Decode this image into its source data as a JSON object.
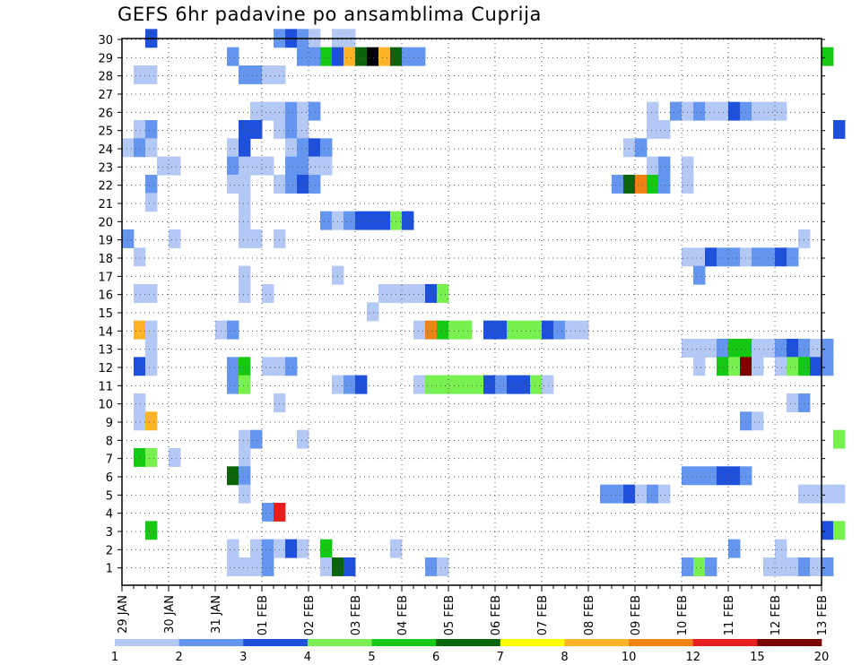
{
  "chart_data": {
    "type": "heatmap",
    "title": "GEFS 6hr padavine po ansamblima Cuprija",
    "xlabel": "",
    "ylabel": "",
    "x_tick_labels": [
      "29 JAN",
      "30 JAN",
      "31 JAN",
      "01 FEB",
      "02 FEB",
      "03 FEB",
      "04 FEB",
      "05 FEB",
      "06 FEB",
      "07 FEB",
      "08 FEB",
      "09 FEB",
      "10 FEB",
      "11 FEB",
      "12 FEB",
      "13 FEB"
    ],
    "y_tick_labels": [
      "1",
      "2",
      "3",
      "4",
      "5",
      "6",
      "7",
      "8",
      "9",
      "10",
      "11",
      "12",
      "13",
      "14",
      "15",
      "16",
      "17",
      "18",
      "19",
      "20",
      "21",
      "22",
      "23",
      "24",
      "25",
      "26",
      "27",
      "28",
      "29",
      "30"
    ],
    "time_step_hours": 6,
    "grid": "dotted",
    "colorbar": {
      "bounds": [
        "1",
        "2",
        "3",
        "4",
        "5",
        "6",
        "7",
        "8",
        "10",
        "12",
        "15",
        "20"
      ],
      "colors": [
        "#b4c8f5",
        "#6496f0",
        "#1e50dc",
        "#78f050",
        "#14c814",
        "#0a640a",
        "#ffff00",
        "#ffb428",
        "#f08214",
        "#e61e1e",
        "#780000"
      ]
    },
    "note": "cells: [member, step_index_from_29_JAN_00Z, precip_class_lower_bound]",
    "cells": [
      [
        30,
        2,
        3
      ],
      [
        30,
        13,
        2
      ],
      [
        30,
        14,
        3
      ],
      [
        30,
        15,
        2
      ],
      [
        30,
        16,
        1
      ],
      [
        30,
        18,
        1
      ],
      [
        30,
        19,
        1
      ],
      [
        29,
        9,
        2
      ],
      [
        29,
        15,
        2
      ],
      [
        29,
        16,
        2
      ],
      [
        29,
        17,
        5
      ],
      [
        29,
        18,
        3
      ],
      [
        29,
        19,
        8
      ],
      [
        29,
        20,
        6
      ],
      [
        29,
        21,
        20
      ],
      [
        29,
        22,
        8
      ],
      [
        29,
        23,
        6
      ],
      [
        29,
        24,
        2
      ],
      [
        29,
        25,
        2
      ],
      [
        29,
        60,
        5
      ],
      [
        28,
        1,
        1
      ],
      [
        28,
        2,
        1
      ],
      [
        28,
        10,
        2
      ],
      [
        28,
        11,
        2
      ],
      [
        28,
        12,
        1
      ],
      [
        28,
        13,
        1
      ],
      [
        26,
        11,
        1
      ],
      [
        26,
        12,
        1
      ],
      [
        26,
        13,
        1
      ],
      [
        26,
        14,
        2
      ],
      [
        26,
        15,
        1
      ],
      [
        26,
        16,
        2
      ],
      [
        26,
        45,
        1
      ],
      [
        26,
        47,
        2
      ],
      [
        26,
        48,
        1
      ],
      [
        26,
        49,
        2
      ],
      [
        26,
        50,
        1
      ],
      [
        26,
        51,
        1
      ],
      [
        26,
        52,
        3
      ],
      [
        26,
        53,
        2
      ],
      [
        26,
        54,
        1
      ],
      [
        26,
        55,
        1
      ],
      [
        26,
        56,
        1
      ],
      [
        25,
        1,
        1
      ],
      [
        25,
        2,
        2
      ],
      [
        25,
        10,
        3
      ],
      [
        25,
        11,
        3
      ],
      [
        25,
        13,
        1
      ],
      [
        25,
        14,
        2
      ],
      [
        25,
        15,
        1
      ],
      [
        25,
        45,
        1
      ],
      [
        25,
        46,
        1
      ],
      [
        25,
        61,
        3
      ],
      [
        24,
        0,
        1
      ],
      [
        24,
        1,
        2
      ],
      [
        24,
        2,
        1
      ],
      [
        24,
        9,
        1
      ],
      [
        24,
        10,
        3
      ],
      [
        24,
        14,
        1
      ],
      [
        24,
        15,
        2
      ],
      [
        24,
        16,
        3
      ],
      [
        24,
        17,
        2
      ],
      [
        24,
        43,
        1
      ],
      [
        24,
        44,
        2
      ],
      [
        23,
        3,
        1
      ],
      [
        23,
        4,
        1
      ],
      [
        23,
        9,
        2
      ],
      [
        23,
        10,
        1
      ],
      [
        23,
        11,
        1
      ],
      [
        23,
        12,
        1
      ],
      [
        23,
        14,
        2
      ],
      [
        23,
        15,
        2
      ],
      [
        23,
        16,
        1
      ],
      [
        23,
        17,
        1
      ],
      [
        23,
        45,
        1
      ],
      [
        23,
        46,
        2
      ],
      [
        23,
        48,
        1
      ],
      [
        22,
        2,
        2
      ],
      [
        22,
        9,
        1
      ],
      [
        22,
        10,
        1
      ],
      [
        22,
        13,
        1
      ],
      [
        22,
        14,
        2
      ],
      [
        22,
        15,
        3
      ],
      [
        22,
        16,
        2
      ],
      [
        22,
        42,
        2
      ],
      [
        22,
        43,
        6
      ],
      [
        22,
        44,
        10
      ],
      [
        22,
        45,
        5
      ],
      [
        22,
        46,
        2
      ],
      [
        22,
        48,
        1
      ],
      [
        21,
        2,
        1
      ],
      [
        21,
        10,
        1
      ],
      [
        20,
        10,
        1
      ],
      [
        20,
        17,
        2
      ],
      [
        20,
        18,
        1
      ],
      [
        20,
        19,
        2
      ],
      [
        20,
        20,
        3
      ],
      [
        20,
        21,
        3
      ],
      [
        20,
        22,
        3
      ],
      [
        20,
        23,
        4
      ],
      [
        20,
        24,
        3
      ],
      [
        19,
        0,
        2
      ],
      [
        19,
        4,
        1
      ],
      [
        19,
        10,
        1
      ],
      [
        19,
        11,
        1
      ],
      [
        19,
        13,
        1
      ],
      [
        19,
        58,
        1
      ],
      [
        18,
        1,
        1
      ],
      [
        18,
        48,
        1
      ],
      [
        18,
        49,
        1
      ],
      [
        18,
        50,
        3
      ],
      [
        18,
        51,
        2
      ],
      [
        18,
        52,
        2
      ],
      [
        18,
        53,
        1
      ],
      [
        18,
        54,
        2
      ],
      [
        18,
        55,
        2
      ],
      [
        18,
        56,
        3
      ],
      [
        18,
        57,
        2
      ],
      [
        17,
        10,
        1
      ],
      [
        17,
        18,
        1
      ],
      [
        17,
        49,
        2
      ],
      [
        16,
        1,
        1
      ],
      [
        16,
        2,
        1
      ],
      [
        16,
        10,
        1
      ],
      [
        16,
        12,
        1
      ],
      [
        16,
        22,
        1
      ],
      [
        16,
        23,
        1
      ],
      [
        16,
        24,
        1
      ],
      [
        16,
        25,
        1
      ],
      [
        16,
        26,
        3
      ],
      [
        16,
        27,
        4
      ],
      [
        15,
        21,
        1
      ],
      [
        14,
        1,
        8
      ],
      [
        14,
        2,
        1
      ],
      [
        14,
        8,
        1
      ],
      [
        14,
        9,
        2
      ],
      [
        14,
        25,
        1
      ],
      [
        14,
        26,
        10
      ],
      [
        14,
        27,
        5
      ],
      [
        14,
        28,
        4
      ],
      [
        14,
        29,
        4
      ],
      [
        14,
        31,
        3
      ],
      [
        14,
        32,
        3
      ],
      [
        14,
        33,
        4
      ],
      [
        14,
        34,
        4
      ],
      [
        14,
        35,
        4
      ],
      [
        14,
        36,
        3
      ],
      [
        14,
        37,
        2
      ],
      [
        14,
        38,
        1
      ],
      [
        14,
        39,
        1
      ],
      [
        13,
        2,
        1
      ],
      [
        13,
        48,
        1
      ],
      [
        13,
        49,
        1
      ],
      [
        13,
        50,
        1
      ],
      [
        13,
        51,
        2
      ],
      [
        13,
        52,
        5
      ],
      [
        13,
        53,
        5
      ],
      [
        13,
        54,
        1
      ],
      [
        13,
        55,
        1
      ],
      [
        13,
        56,
        2
      ],
      [
        13,
        57,
        3
      ],
      [
        13,
        58,
        2
      ],
      [
        13,
        59,
        1
      ],
      [
        13,
        60,
        2
      ],
      [
        12,
        1,
        3
      ],
      [
        12,
        2,
        1
      ],
      [
        12,
        9,
        2
      ],
      [
        12,
        10,
        5
      ],
      [
        12,
        12,
        1
      ],
      [
        12,
        13,
        1
      ],
      [
        12,
        14,
        2
      ],
      [
        12,
        49,
        1
      ],
      [
        12,
        51,
        5
      ],
      [
        12,
        52,
        4
      ],
      [
        12,
        53,
        15
      ],
      [
        12,
        54,
        1
      ],
      [
        12,
        56,
        1
      ],
      [
        12,
        57,
        4
      ],
      [
        12,
        58,
        5
      ],
      [
        12,
        59,
        3
      ],
      [
        12,
        60,
        2
      ],
      [
        11,
        9,
        2
      ],
      [
        11,
        10,
        4
      ],
      [
        11,
        18,
        1
      ],
      [
        11,
        19,
        2
      ],
      [
        11,
        20,
        3
      ],
      [
        11,
        25,
        1
      ],
      [
        11,
        26,
        4
      ],
      [
        11,
        27,
        4
      ],
      [
        11,
        28,
        4
      ],
      [
        11,
        29,
        4
      ],
      [
        11,
        30,
        4
      ],
      [
        11,
        31,
        3
      ],
      [
        11,
        32,
        2
      ],
      [
        11,
        33,
        3
      ],
      [
        11,
        34,
        3
      ],
      [
        11,
        35,
        4
      ],
      [
        11,
        36,
        1
      ],
      [
        10,
        1,
        1
      ],
      [
        10,
        13,
        1
      ],
      [
        10,
        57,
        1
      ],
      [
        10,
        58,
        2
      ],
      [
        9,
        1,
        1
      ],
      [
        9,
        2,
        8
      ],
      [
        9,
        53,
        2
      ],
      [
        9,
        54,
        1
      ],
      [
        8,
        10,
        1
      ],
      [
        8,
        11,
        2
      ],
      [
        8,
        15,
        1
      ],
      [
        8,
        61,
        4
      ],
      [
        7,
        1,
        5
      ],
      [
        7,
        2,
        4
      ],
      [
        7,
        4,
        1
      ],
      [
        7,
        10,
        1
      ],
      [
        6,
        9,
        6
      ],
      [
        6,
        10,
        2
      ],
      [
        6,
        48,
        2
      ],
      [
        6,
        49,
        2
      ],
      [
        6,
        50,
        2
      ],
      [
        6,
        51,
        3
      ],
      [
        6,
        52,
        3
      ],
      [
        6,
        53,
        2
      ],
      [
        5,
        10,
        1
      ],
      [
        5,
        41,
        2
      ],
      [
        5,
        42,
        2
      ],
      [
        5,
        43,
        3
      ],
      [
        5,
        44,
        1
      ],
      [
        5,
        45,
        2
      ],
      [
        5,
        46,
        1
      ],
      [
        5,
        58,
        1
      ],
      [
        5,
        59,
        1
      ],
      [
        5,
        60,
        1
      ],
      [
        5,
        61,
        1
      ],
      [
        4,
        12,
        2
      ],
      [
        4,
        13,
        12
      ],
      [
        3,
        2,
        5
      ],
      [
        3,
        60,
        3
      ],
      [
        3,
        61,
        4
      ],
      [
        2,
        9,
        1
      ],
      [
        2,
        11,
        1
      ],
      [
        2,
        12,
        2
      ],
      [
        2,
        13,
        1
      ],
      [
        2,
        14,
        3
      ],
      [
        2,
        15,
        1
      ],
      [
        2,
        17,
        5
      ],
      [
        2,
        23,
        1
      ],
      [
        2,
        52,
        2
      ],
      [
        2,
        56,
        1
      ],
      [
        1,
        9,
        1
      ],
      [
        1,
        10,
        1
      ],
      [
        1,
        11,
        1
      ],
      [
        1,
        12,
        2
      ],
      [
        1,
        17,
        1
      ],
      [
        1,
        18,
        6
      ],
      [
        1,
        19,
        3
      ],
      [
        1,
        26,
        2
      ],
      [
        1,
        27,
        1
      ],
      [
        1,
        48,
        2
      ],
      [
        1,
        49,
        4
      ],
      [
        1,
        50,
        2
      ],
      [
        1,
        55,
        1
      ],
      [
        1,
        56,
        1
      ],
      [
        1,
        57,
        1
      ],
      [
        1,
        58,
        2
      ],
      [
        1,
        59,
        1
      ],
      [
        1,
        60,
        2
      ]
    ]
  }
}
